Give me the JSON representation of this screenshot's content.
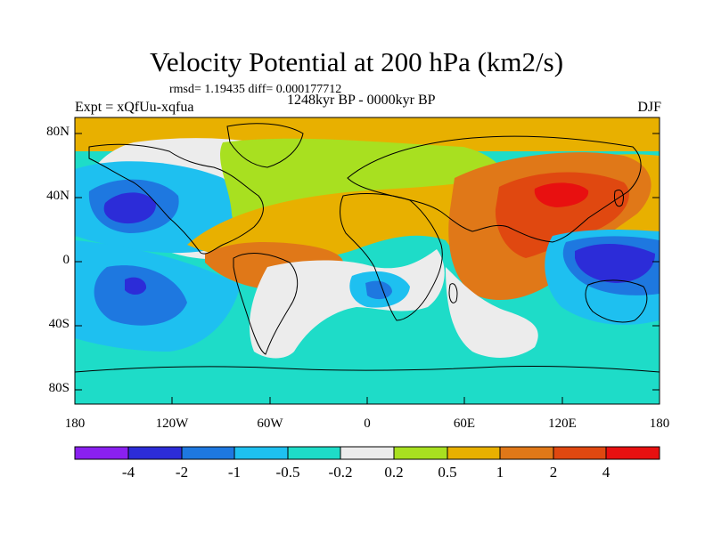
{
  "title": "Velocity Potential at 200 hPa (km2/s)",
  "rmsd_line": "rmsd= 1.19435 diff= 0.000177712",
  "period": "1248kyr BP - 0000kyr BP",
  "experiment": "Expt = xQfUu-xqfua",
  "season": "DJF",
  "lat_ticks": [
    "80N",
    "40N",
    "0",
    "40S",
    "80S"
  ],
  "lon_ticks": [
    "180",
    "120W",
    "60W",
    "0",
    "60E",
    "120E",
    "180"
  ],
  "colorbar": {
    "labels": [
      "-4",
      "-2",
      "-1",
      "-0.5",
      "-0.2",
      "0.2",
      "0.5",
      "1",
      "2",
      "4"
    ],
    "colors": [
      "#8a20f0",
      "#2c2cd8",
      "#1e78e0",
      "#1ec0f0",
      "#1edcc8",
      "#ececec",
      "#a8e020",
      "#e8b000",
      "#e07818",
      "#e04810",
      "#e81010"
    ]
  },
  "legend_colors": {
    "strong_negative": "#2c2cd8",
    "negative": "#1e78e0",
    "weak_negative": "#1ec0f0",
    "near_zero_negative": "#1edcc8",
    "neutral": "#ececec",
    "weak_positive": "#a8e020",
    "positive": "#e8b000",
    "strong_positive": "#e07818",
    "very_strong_positive": "#e04810"
  }
}
